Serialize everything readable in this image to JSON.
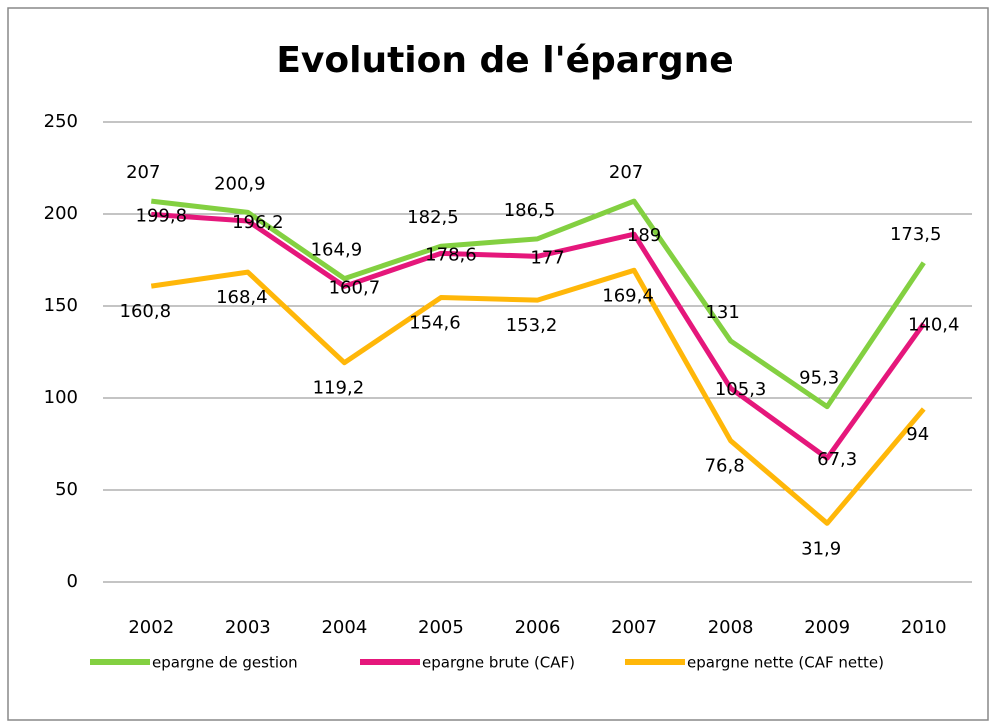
{
  "chart_data": {
    "type": "line",
    "title": "Evolution de l'épargne",
    "categories": [
      "2002",
      "2003",
      "2004",
      "2005",
      "2006",
      "2007",
      "2008",
      "2009",
      "2010"
    ],
    "series": [
      {
        "name": "epargne de gestion",
        "color": "#83d041",
        "values": [
          207,
          200.9,
          164.9,
          182.5,
          186.5,
          207,
          131,
          95.3,
          173.5
        ],
        "value_labels": [
          "207",
          "200,9",
          "164,9",
          "182,5",
          "186,5",
          "207",
          "131",
          "95,3",
          "173,5"
        ]
      },
      {
        "name": "epargne brute (CAF)",
        "color": "#e5177b",
        "values": [
          199.8,
          196.2,
          160.7,
          178.6,
          177,
          189,
          105.3,
          67.3,
          140.4
        ],
        "value_labels": [
          "199,8",
          "196,2",
          "160,7",
          "178,6",
          "177",
          "189",
          "105,3",
          "67,3",
          "140,4"
        ]
      },
      {
        "name": "epargne nette (CAF nette)",
        "color": "#ffb709",
        "values": [
          160.8,
          168.4,
          119.2,
          154.6,
          153.2,
          169.4,
          76.8,
          31.9,
          94
        ],
        "value_labels": [
          "160,8",
          "168,4",
          "119,2",
          "154,6",
          "153,2",
          "169,4",
          "76,8",
          "31,9",
          "94"
        ]
      }
    ],
    "ylim": [
      0,
      250
    ],
    "yticks": [
      0,
      50,
      100,
      150,
      200,
      250
    ],
    "grid": true,
    "legend": "bottom"
  }
}
